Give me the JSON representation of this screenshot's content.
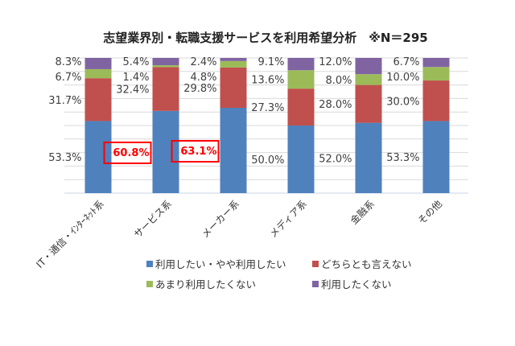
{
  "chart_data": {
    "type": "bar",
    "stacked": true,
    "title": "志望業界別・転職支援サービスを利用希望分析　※N＝295",
    "categories": [
      "IT・通信・ｲﾝﾀｰﾈｯﾄ系",
      "サービス系",
      "メーカー系",
      "メディア系",
      "金融系",
      "その他"
    ],
    "series": [
      {
        "name": "利用したい・やや利用したい",
        "color": "#4f81bd",
        "values": [
          53.3,
          60.8,
          63.1,
          50.0,
          52.0,
          53.3
        ],
        "labels": [
          "53.3%",
          "60.8%",
          "63.1%",
          "50.0%",
          "52.0%",
          "53.3%"
        ]
      },
      {
        "name": "どちらとも言えない",
        "color": "#c0504d",
        "values": [
          31.7,
          32.4,
          29.8,
          27.3,
          28.0,
          30.0
        ],
        "labels": [
          "31.7%",
          "32.4%",
          "29.8%",
          "27.3%",
          "28.0%",
          "30.0%"
        ]
      },
      {
        "name": "あまり利用したくない",
        "color": "#9bbb59",
        "values": [
          6.7,
          1.4,
          4.8,
          13.6,
          8.0,
          10.0
        ],
        "labels": [
          "6.7%",
          "1.4%",
          "4.8%",
          "13.6%",
          "8.0%",
          "10.0%"
        ]
      },
      {
        "name": "利用したくない",
        "color": "#8064a2",
        "values": [
          8.3,
          5.4,
          2.4,
          9.1,
          12.0,
          6.7
        ],
        "labels": [
          "8.3%",
          "5.4%",
          "2.4%",
          "9.1%",
          "12.0%",
          "6.7%"
        ]
      }
    ],
    "highlighted": [
      1,
      2
    ],
    "highlight_color": "#ff0000",
    "ylim": [
      0,
      100
    ],
    "grid": true,
    "legend_position": "bottom",
    "xlabel": "",
    "ylabel": ""
  }
}
